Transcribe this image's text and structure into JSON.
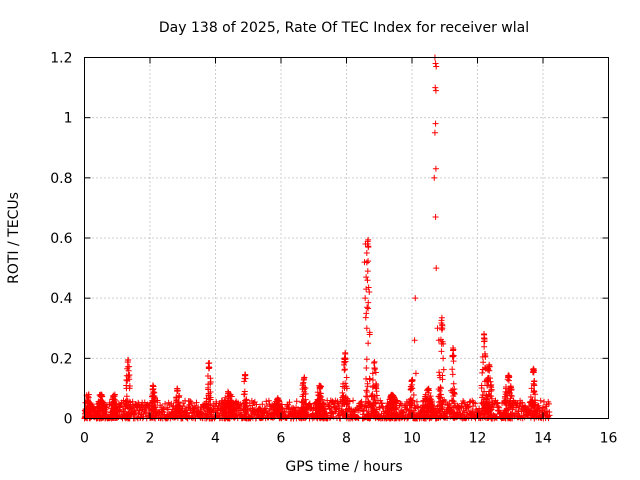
{
  "chart_data": {
    "type": "scatter",
    "title": "Day 138 of 2025, Rate Of TEC Index for receiver wlal",
    "xlabel": "GPS time / hours",
    "ylabel": "ROTI / TECUs",
    "xlim": [
      0,
      16
    ],
    "ylim": [
      0,
      1.2
    ],
    "xticks": [
      "0",
      "2",
      "4",
      "6",
      "8",
      "10",
      "12",
      "14",
      "16"
    ],
    "yticks": [
      "0",
      "0.2",
      "0.4",
      "0.6",
      "0.8",
      "1",
      "1.2"
    ],
    "grid": true,
    "marker": "+",
    "color": "#ff0000",
    "baseline": {
      "x_range": [
        0,
        14.2
      ],
      "step": 0.01,
      "level_max": 0.06
    },
    "clusters": [
      {
        "x": 0.1,
        "width": 0.25,
        "peak": 0.08
      },
      {
        "x": 0.5,
        "width": 0.3,
        "peak": 0.08
      },
      {
        "x": 0.9,
        "width": 0.2,
        "peak": 0.08
      },
      {
        "x": 1.33,
        "width": 0.15,
        "peak": 0.2
      },
      {
        "x": 2.1,
        "width": 0.15,
        "peak": 0.11
      },
      {
        "x": 2.85,
        "width": 0.15,
        "peak": 0.1
      },
      {
        "x": 3.8,
        "width": 0.15,
        "peak": 0.19
      },
      {
        "x": 4.4,
        "width": 0.4,
        "peak": 0.09
      },
      {
        "x": 4.9,
        "width": 0.1,
        "peak": 0.15
      },
      {
        "x": 5.9,
        "width": 0.3,
        "peak": 0.07
      },
      {
        "x": 6.7,
        "width": 0.15,
        "peak": 0.14
      },
      {
        "x": 7.2,
        "width": 0.3,
        "peak": 0.11
      },
      {
        "x": 7.95,
        "width": 0.18,
        "peak": 0.22
      },
      {
        "x": 8.65,
        "width": 0.15,
        "peak": 0.6
      },
      {
        "x": 8.85,
        "width": 0.18,
        "peak": 0.19
      },
      {
        "x": 9.4,
        "width": 0.3,
        "peak": 0.08
      },
      {
        "x": 10.0,
        "width": 0.15,
        "peak": 0.13
      },
      {
        "x": 10.5,
        "width": 0.3,
        "peak": 0.1
      },
      {
        "x": 10.9,
        "width": 0.18,
        "peak": 0.34
      },
      {
        "x": 11.25,
        "width": 0.12,
        "peak": 0.24
      },
      {
        "x": 12.2,
        "width": 0.15,
        "peak": 0.29
      },
      {
        "x": 12.35,
        "width": 0.2,
        "peak": 0.18
      },
      {
        "x": 12.95,
        "width": 0.25,
        "peak": 0.15
      },
      {
        "x": 13.7,
        "width": 0.15,
        "peak": 0.17
      }
    ],
    "spikes": [
      {
        "x": 10.08,
        "y": 0.26
      },
      {
        "x": 10.1,
        "y": 0.4
      },
      {
        "x": 10.12,
        "y": 0.15
      },
      {
        "x": 10.7,
        "y": 1.2
      },
      {
        "x": 10.72,
        "y": 1.18
      },
      {
        "x": 10.74,
        "y": 1.17
      },
      {
        "x": 10.71,
        "y": 1.1
      },
      {
        "x": 10.73,
        "y": 1.09
      },
      {
        "x": 10.72,
        "y": 0.98
      },
      {
        "x": 10.7,
        "y": 0.95
      },
      {
        "x": 10.73,
        "y": 0.83
      },
      {
        "x": 10.68,
        "y": 0.8
      },
      {
        "x": 10.72,
        "y": 0.67
      },
      {
        "x": 10.74,
        "y": 0.5
      },
      {
        "x": 8.58,
        "y": 0.58
      },
      {
        "x": 8.62,
        "y": 0.55
      },
      {
        "x": 8.55,
        "y": 0.52
      },
      {
        "x": 8.65,
        "y": 0.49
      },
      {
        "x": 8.6,
        "y": 0.47
      },
      {
        "x": 8.6,
        "y": 0.43
      },
      {
        "x": 8.57,
        "y": 0.4
      },
      {
        "x": 8.63,
        "y": 0.37
      },
      {
        "x": 8.62,
        "y": 0.3
      },
      {
        "x": 8.66,
        "y": 0.25
      },
      {
        "x": 10.78,
        "y": 0.3
      },
      {
        "x": 10.82,
        "y": 0.26
      }
    ]
  }
}
